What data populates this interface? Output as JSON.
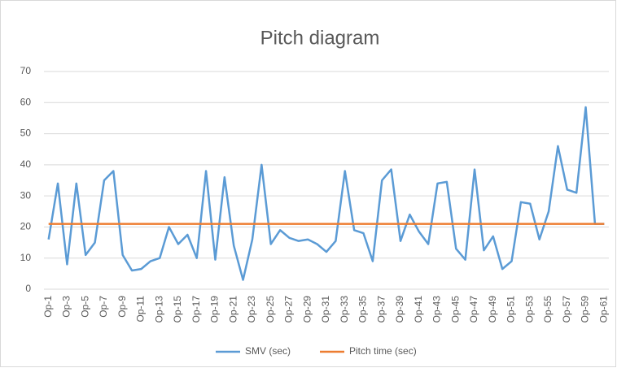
{
  "chart_data": {
    "type": "line",
    "title": "Pitch diagram",
    "categories": [
      "Op-1",
      null,
      "Op-3",
      null,
      "Op-5",
      null,
      "Op-7",
      null,
      "Op-9",
      null,
      "Op-11",
      null,
      "Op-13",
      null,
      "Op-15",
      null,
      "Op-17",
      null,
      "Op-19",
      null,
      "Op-21",
      null,
      "Op-23",
      null,
      "Op-25",
      null,
      "Op-27",
      null,
      "Op-29",
      null,
      "Op-31",
      null,
      "Op-33",
      null,
      "Op-35",
      null,
      "Op-37",
      null,
      "Op-39",
      null,
      "Op-41",
      null,
      "Op-43",
      null,
      "Op-45",
      null,
      "Op-47",
      null,
      "Op-49",
      null,
      "Op-51",
      null,
      "Op-53",
      null,
      "Op-55",
      null,
      "Op-57",
      null,
      "Op-59",
      null,
      "Op-61"
    ],
    "series": [
      {
        "name": "SMV (sec)",
        "color": "#5b9bd5",
        "values": [
          16,
          34,
          8,
          34,
          11,
          15,
          35,
          38,
          11,
          6,
          6.5,
          9,
          10,
          20,
          14.5,
          17.5,
          10,
          38,
          9.5,
          36,
          14,
          3,
          16,
          40,
          14.5,
          19,
          16.5,
          15.5,
          16,
          14.5,
          12,
          15.5,
          38,
          19,
          18,
          9,
          35,
          38.5,
          15.5,
          24,
          18.5,
          14.5,
          34,
          34.5,
          13,
          9.5,
          38.5,
          12.5,
          17,
          6.5,
          9,
          28,
          27.5,
          16,
          25,
          46,
          32,
          31,
          58.5,
          21,
          21
        ]
      },
      {
        "name": "Pitch time (sec)",
        "color": "#ed7d31",
        "values": [
          21,
          21,
          21,
          21,
          21,
          21,
          21,
          21,
          21,
          21,
          21,
          21,
          21,
          21,
          21,
          21,
          21,
          21,
          21,
          21,
          21,
          21,
          21,
          21,
          21,
          21,
          21,
          21,
          21,
          21,
          21,
          21,
          21,
          21,
          21,
          21,
          21,
          21,
          21,
          21,
          21,
          21,
          21,
          21,
          21,
          21,
          21,
          21,
          21,
          21,
          21,
          21,
          21,
          21,
          21,
          21,
          21,
          21,
          21,
          21,
          21
        ]
      }
    ],
    "ylim": [
      0,
      70
    ],
    "yticks": [
      0,
      10,
      20,
      30,
      40,
      50,
      60,
      70
    ],
    "grid": true,
    "legend": "bottom"
  }
}
